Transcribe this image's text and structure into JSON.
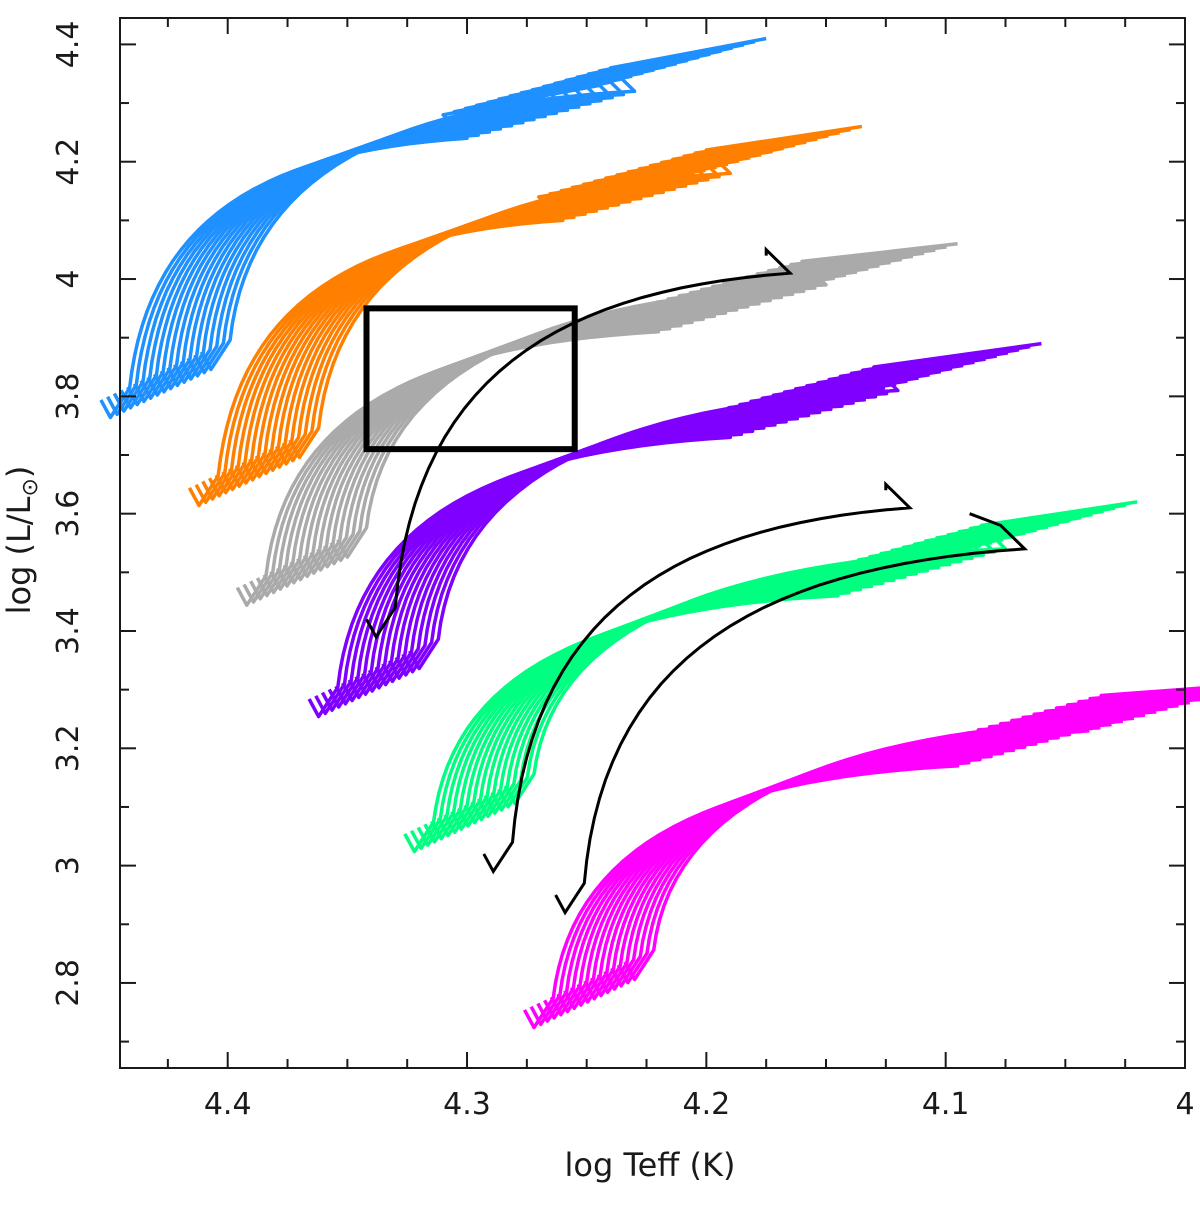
{
  "chart_data": {
    "type": "line",
    "title": "",
    "xlabel": "log Teff (K)",
    "ylabel_parts": {
      "prefix": "log (L/L",
      "sun_symbol": "⊙",
      "suffix": ")"
    },
    "xlim": [
      4.445,
      4.0
    ],
    "ylim": [
      2.655,
      4.445
    ],
    "xticks": [
      4.4,
      4.3,
      4.2,
      4.1,
      4.0
    ],
    "xtick_labels": [
      "4.4",
      "4.3",
      "4.2",
      "4.1",
      "4"
    ],
    "yticks": [
      2.8,
      3.0,
      3.2,
      3.4,
      3.6,
      3.8,
      4.0,
      4.2,
      4.4
    ],
    "ytick_labels": [
      "2.8",
      "3",
      "3.2",
      "3.4",
      "3.6",
      "3.8",
      "4",
      "4.2",
      "4.4"
    ],
    "grid": false,
    "track_groups": [
      {
        "name": "group-1",
        "color": "#1e90ff",
        "tracks": 16,
        "start": [
          4.432,
          3.81
        ],
        "tip": [
          4.265,
          4.28
        ],
        "end": [
          4.21,
          4.37
        ]
      },
      {
        "name": "group-2",
        "color": "#ff8000",
        "tracks": 16,
        "start": [
          4.395,
          3.66
        ],
        "tip": [
          4.225,
          4.14
        ],
        "end": [
          4.17,
          4.22
        ]
      },
      {
        "name": "group-3",
        "color": "#aaaaaa",
        "tracks": 16,
        "start": [
          4.375,
          3.49
        ],
        "tip": [
          4.185,
          3.95
        ],
        "end": [
          4.13,
          4.02
        ]
      },
      {
        "name": "group-4",
        "color": "#8000ff",
        "tracks": 16,
        "start": [
          4.345,
          3.3
        ],
        "tip": [
          4.155,
          3.77
        ],
        "end": [
          4.095,
          3.85
        ]
      },
      {
        "name": "group-5",
        "color": "#00ff80",
        "tracks": 16,
        "start": [
          4.305,
          3.07
        ],
        "tip": [
          4.11,
          3.5
        ],
        "end": [
          4.055,
          3.58
        ]
      },
      {
        "name": "group-6",
        "color": "#ff00ff",
        "tracks": 16,
        "start": [
          4.255,
          2.77
        ],
        "tip": [
          4.06,
          3.21
        ],
        "end": [
          4.005,
          3.27
        ]
      }
    ],
    "highlight_tracks": [
      {
        "name": "black-track-1",
        "color": "#000000",
        "start": [
          4.342,
          3.42
        ],
        "tip": [
          4.165,
          4.01
        ],
        "end": [
          4.175,
          4.04
        ]
      },
      {
        "name": "black-track-2",
        "color": "#000000",
        "start": [
          4.293,
          3.02
        ],
        "tip": [
          4.115,
          3.61
        ],
        "end": [
          4.125,
          3.64
        ]
      },
      {
        "name": "black-track-3",
        "color": "#000000",
        "start": [
          4.263,
          2.95
        ],
        "tip": [
          4.067,
          3.54
        ],
        "end": [
          4.09,
          3.6
        ]
      }
    ],
    "box": {
      "x": [
        4.342,
        4.255
      ],
      "y": [
        3.71,
        3.95
      ],
      "color": "#000000"
    }
  }
}
